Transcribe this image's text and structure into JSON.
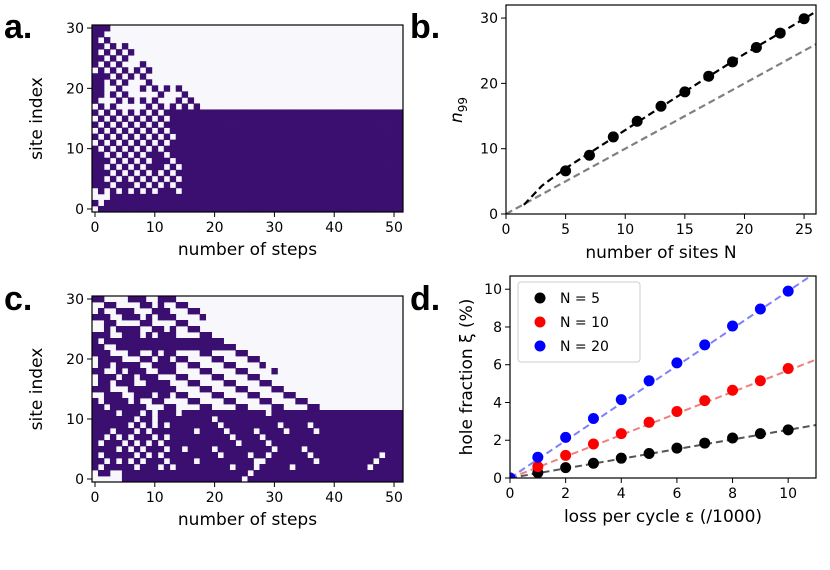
{
  "chart_data": [
    {
      "panel": "a.",
      "type": "heatmap",
      "xlabel": "number of steps",
      "ylabel": "site index",
      "xticks": [
        0,
        10,
        20,
        30,
        40,
        50
      ],
      "yticks": [
        0,
        10,
        20,
        30
      ],
      "xlim": [
        -0.5,
        51.5
      ],
      "ylim": [
        -0.5,
        30.5
      ],
      "color_occupied": "#3b0f70",
      "color_empty": "#f8f7fc",
      "description_values": {
        "sites": 31,
        "steps": 52,
        "final_filled_sites": 17
      }
    },
    {
      "panel": "b.",
      "type": "scatter",
      "xlabel": "number of sites N",
      "ylabel": "n",
      "ylabel_sub": "99",
      "xticks": [
        0,
        5,
        10,
        15,
        20,
        25
      ],
      "yticks": [
        0,
        10,
        20,
        30
      ],
      "xlim": [
        0,
        26
      ],
      "ylim": [
        0,
        32
      ],
      "points": {
        "x": [
          5,
          7,
          9,
          11,
          13,
          15,
          17,
          19,
          21,
          23,
          25
        ],
        "y": [
          6.6,
          9.0,
          11.8,
          14.2,
          16.5,
          18.7,
          21.1,
          23.3,
          25.5,
          27.7,
          29.9
        ]
      },
      "fit_black": {
        "x": [
          1.5,
          3,
          5,
          8,
          12,
          16,
          20,
          24,
          26
        ],
        "y": [
          1.4,
          4.3,
          7.0,
          10.5,
          15.2,
          19.9,
          24.5,
          28.8,
          31.0
        ]
      },
      "fit_gray": {
        "x": [
          0,
          26
        ],
        "y": [
          0,
          26
        ]
      },
      "marker_color": "#000000",
      "fit_color": "#000000",
      "gray_color": "#808080"
    },
    {
      "panel": "c.",
      "type": "heatmap",
      "xlabel": "number of steps",
      "ylabel": "site index",
      "xticks": [
        0,
        10,
        20,
        30,
        40,
        50
      ],
      "yticks": [
        0,
        10,
        20,
        30
      ],
      "xlim": [
        -0.5,
        51.5
      ],
      "ylim": [
        -0.5,
        30.5
      ],
      "color_occupied": "#3b0f70",
      "color_empty": "#f8f7fc",
      "description_values": {
        "sites": 31,
        "steps": 52,
        "final_filled_sites": 12
      }
    },
    {
      "panel": "d.",
      "type": "scatter",
      "xlabel": "loss per cycle ε (/1000)",
      "ylabel": "hole fraction ξ (%)",
      "xticks": [
        0,
        2,
        4,
        6,
        8,
        10
      ],
      "yticks": [
        0,
        2,
        4,
        6,
        8,
        10
      ],
      "xlim": [
        0,
        11
      ],
      "ylim": [
        0,
        10.7
      ],
      "legend_position": "upper-left",
      "series": [
        {
          "name": "N = 5",
          "color": "#000000",
          "fit_color": "#555555",
          "x": [
            0,
            1,
            2,
            3,
            4,
            5,
            6,
            7,
            8,
            9,
            10
          ],
          "y": [
            0,
            0.28,
            0.55,
            0.78,
            1.05,
            1.3,
            1.58,
            1.85,
            2.12,
            2.35,
            2.55
          ],
          "slope": 0.255
        },
        {
          "name": "N = 10",
          "color": "#ff0000",
          "fit_color": "#f08080",
          "x": [
            0,
            1,
            2,
            3,
            4,
            5,
            6,
            7,
            8,
            9,
            10
          ],
          "y": [
            0,
            0.6,
            1.2,
            1.8,
            2.35,
            2.95,
            3.52,
            4.1,
            4.65,
            5.15,
            5.8
          ],
          "slope": 0.57
        },
        {
          "name": "N = 20",
          "color": "#0000ff",
          "fit_color": "#7f7fff",
          "x": [
            0,
            1,
            2,
            3,
            4,
            5,
            6,
            7,
            8,
            9,
            10
          ],
          "y": [
            0,
            1.1,
            2.15,
            3.15,
            4.15,
            5.15,
            6.1,
            7.05,
            8.05,
            8.95,
            9.9
          ],
          "slope": 0.99
        }
      ]
    }
  ]
}
